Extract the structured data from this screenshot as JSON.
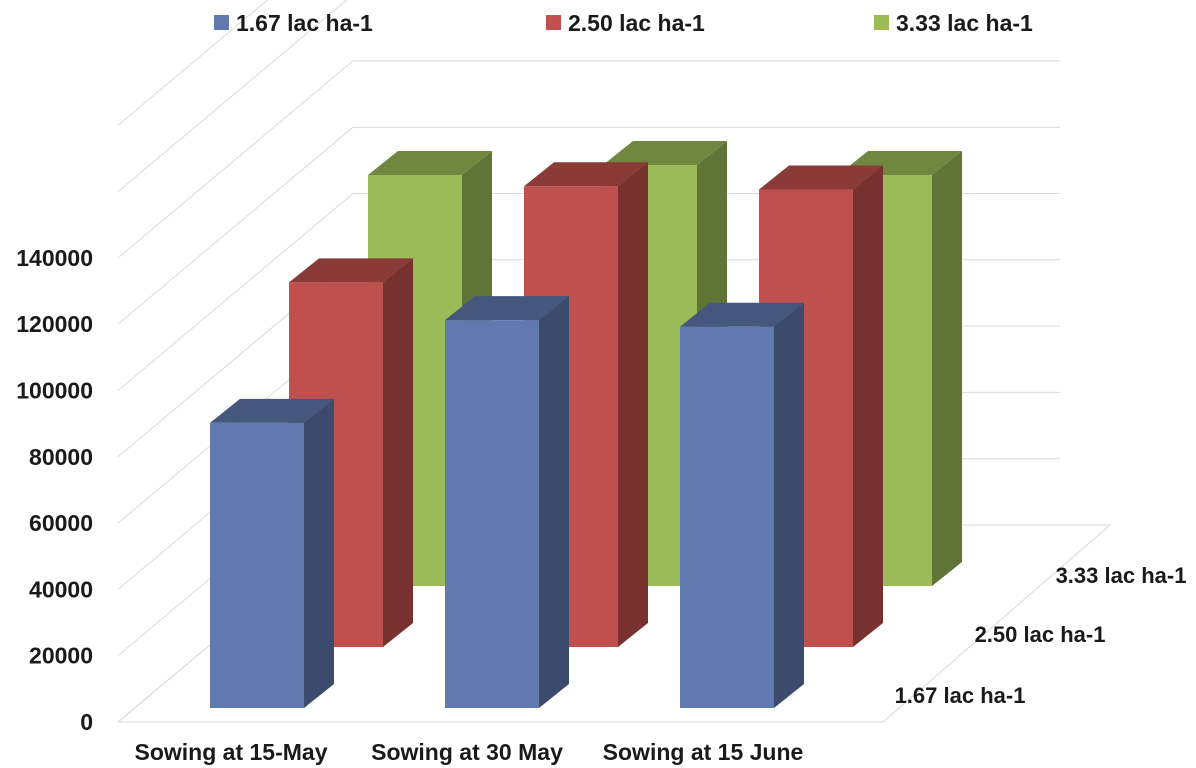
{
  "chart_data": {
    "type": "bar",
    "subtype": "3d-clustered",
    "title": "",
    "xlabel": "",
    "ylabel": "",
    "ylim": [
      0,
      140000
    ],
    "yticks": [
      0,
      20000,
      40000,
      60000,
      80000,
      100000,
      120000,
      140000
    ],
    "categories": [
      "Sowing at 15-May",
      "Sowing at 30 May",
      "Sowing at 15 June"
    ],
    "series": [
      {
        "name": "1.67 lac ha-1",
        "color": "#6079ae",
        "values": [
          86000,
          117000,
          115000
        ]
      },
      {
        "name": "2.50 lac ha-1",
        "color": "#c0504d",
        "values": [
          110000,
          139000,
          138000
        ]
      },
      {
        "name": "3.33 lac ha-1",
        "color": "#9bbb59",
        "values": [
          124000,
          127000,
          124000
        ]
      }
    ],
    "depth_labels": [
      "3.33 lac ha-1",
      "2.50 lac ha-1",
      "1.67 lac ha-1"
    ],
    "legend_position": "top",
    "grid": true
  }
}
